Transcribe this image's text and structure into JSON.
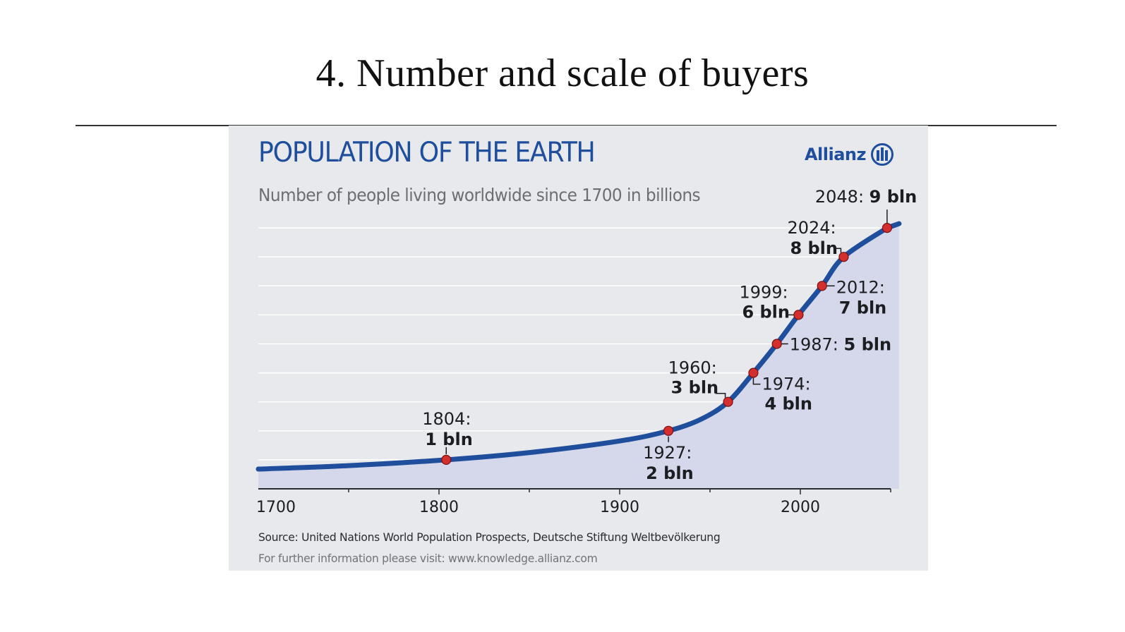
{
  "slide": {
    "title": "4. Number and scale of buyers"
  },
  "colors": {
    "title_blue": "#1f4e9c",
    "line_blue": "#1f4e9c",
    "area_fill": "#d4d8ea",
    "panel_bg": "#e8e9ec",
    "marker_red": "#d32f2f",
    "grid": "#ffffff"
  },
  "brand": {
    "name": "Allianz",
    "logo_icon": "allianz-logo-icon"
  },
  "footer": {
    "source": "Source: United Nations World Population Prospects, Deutsche Stiftung Weltbevölkerung",
    "more_info": "For further information please visit:  www.knowledge.allianz.com"
  },
  "chart_data": {
    "type": "area",
    "title": "POPULATION OF THE EARTH",
    "subtitle": "Number of people living worldwide since 1700 in billions",
    "xlabel": "",
    "ylabel": "",
    "xlim": [
      1700,
      2050
    ],
    "ylim": [
      0,
      9
    ],
    "x_ticks": [
      1700,
      1800,
      1900,
      2000
    ],
    "grid": true,
    "legend": "none",
    "curve": {
      "x": [
        1700,
        1750,
        1804,
        1850,
        1900,
        1927,
        1945,
        1960,
        1974,
        1987,
        1999,
        2012,
        2024,
        2048
      ],
      "y": [
        0.68,
        0.8,
        1.0,
        1.25,
        1.65,
        2.0,
        2.4,
        3.0,
        4.0,
        5.0,
        6.0,
        7.0,
        8.0,
        9.0
      ]
    },
    "milestones": [
      {
        "year": "1804",
        "value": "1 bln",
        "x": 1804,
        "y": 1
      },
      {
        "year": "1927",
        "value": "2 bln",
        "x": 1927,
        "y": 2
      },
      {
        "year": "1960",
        "value": "3 bln",
        "x": 1960,
        "y": 3
      },
      {
        "year": "1974",
        "value": "4 bln",
        "x": 1974,
        "y": 4
      },
      {
        "year": "1987",
        "value": "5 bln",
        "x": 1987,
        "y": 5
      },
      {
        "year": "1999",
        "value": "6 bln",
        "x": 1999,
        "y": 6
      },
      {
        "year": "2012",
        "value": "7 bln",
        "x": 2012,
        "y": 7
      },
      {
        "year": "2024",
        "value": "8 bln",
        "x": 2024,
        "y": 8
      },
      {
        "year": "2048",
        "value": "9 bln",
        "x": 2048,
        "y": 9
      }
    ]
  }
}
